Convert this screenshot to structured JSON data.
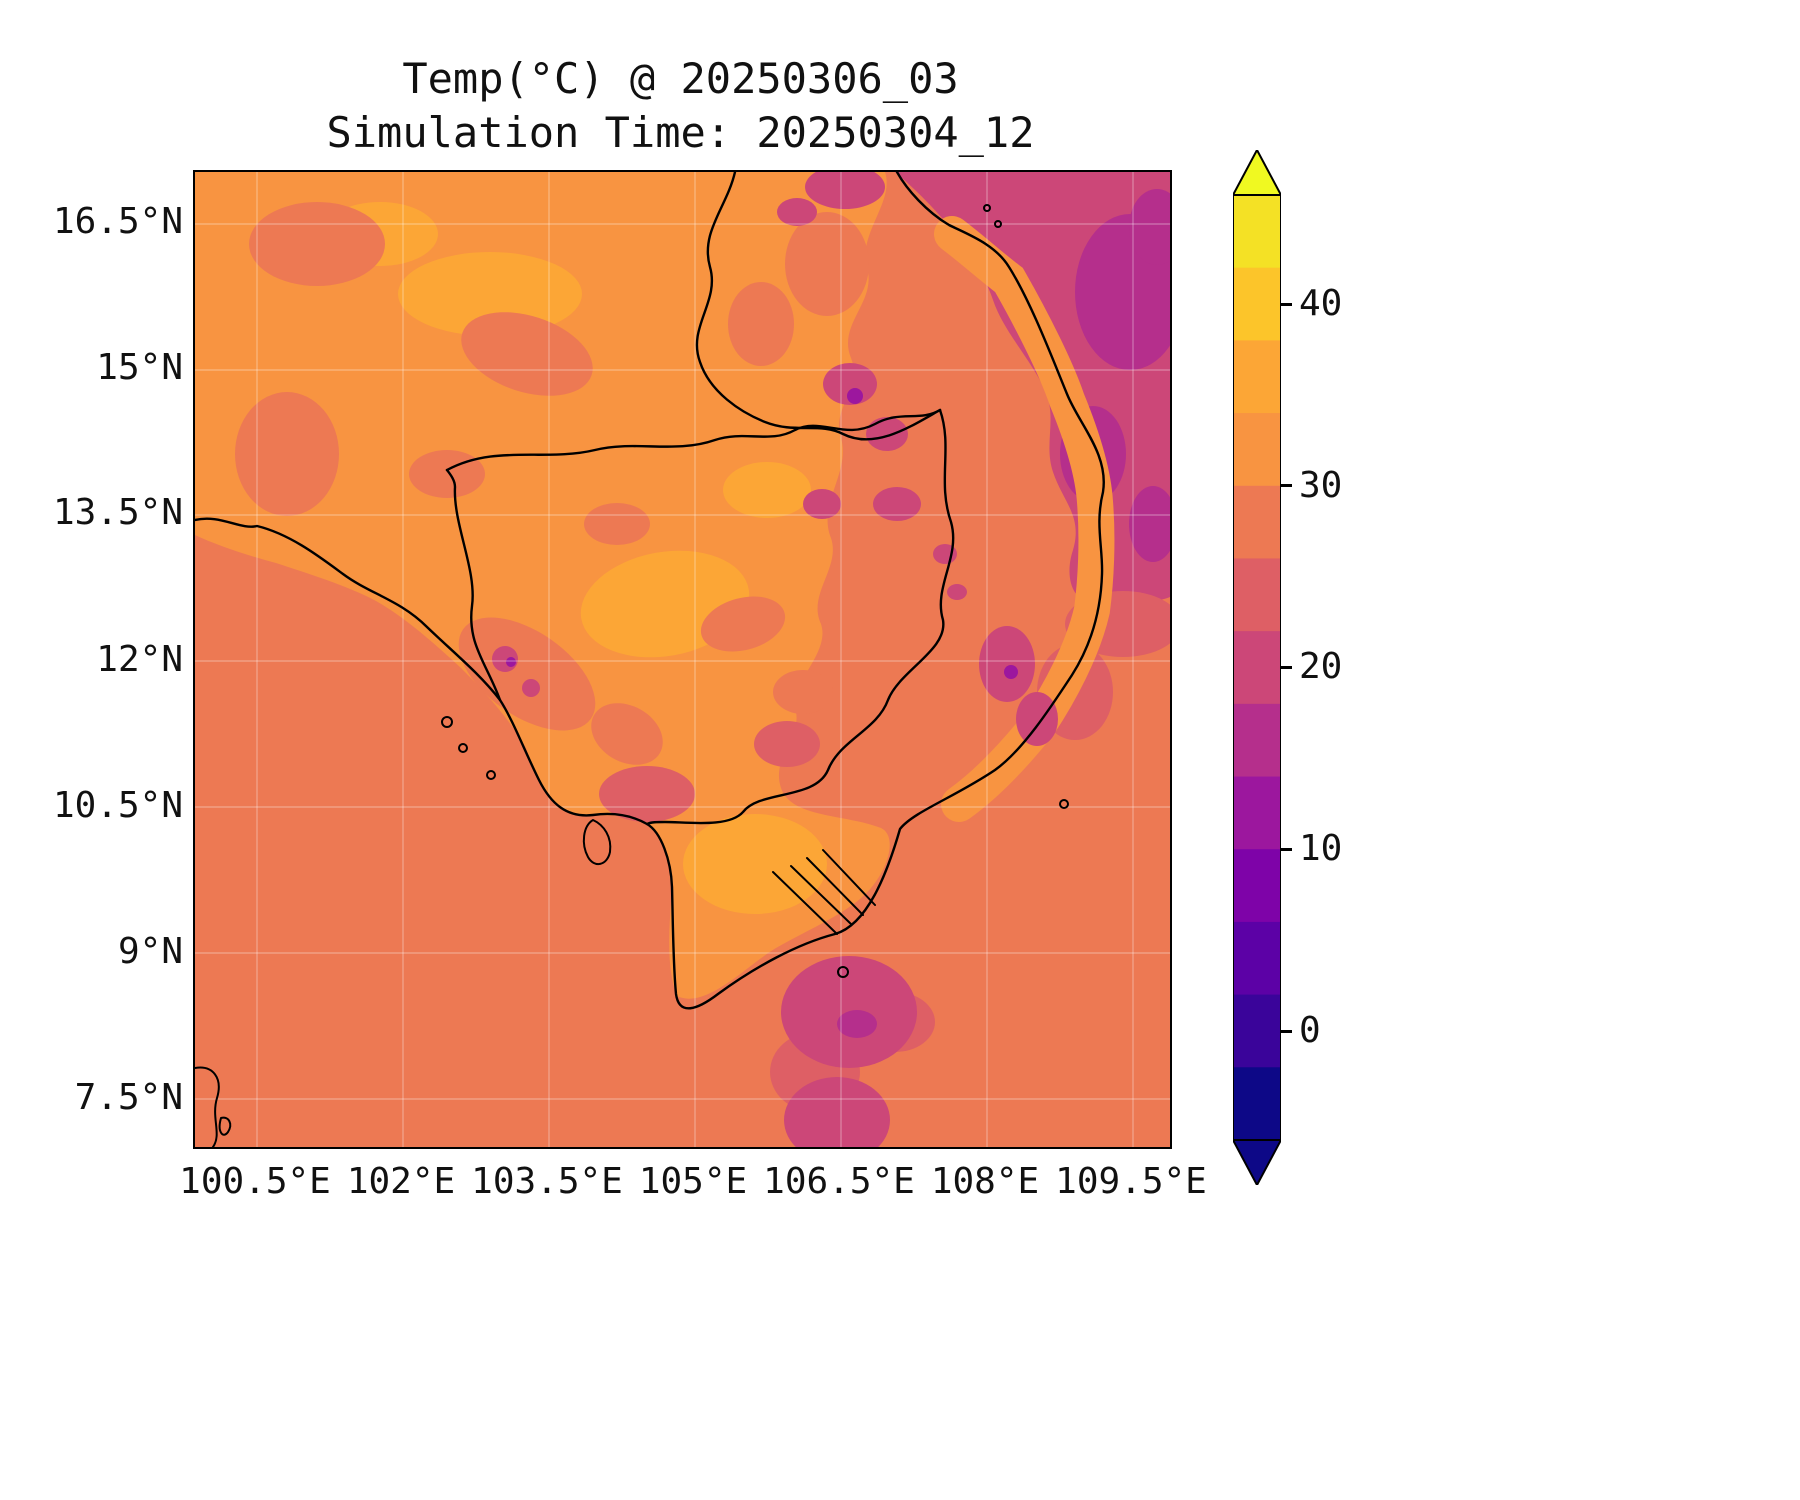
{
  "figure": {
    "title_line1": "Temp(°C) @ 20250306_03",
    "title_line2": "Simulation Time: 20250304_12"
  },
  "chart_data": {
    "type": "heatmap",
    "title": "Temp(°C) @ 20250306_03",
    "subtitle": "Simulation Time: 20250304_12",
    "variable": "Temp",
    "units": "°C",
    "valid_time": "20250306_03",
    "simulation_time": "20250304_12",
    "x_axis": {
      "tick_labels": [
        "100.5°E",
        "102°E",
        "103.5°E",
        "105°E",
        "106.5°E",
        "108°E",
        "109.5°E"
      ],
      "tick_values": [
        100.5,
        102,
        103.5,
        105,
        106.5,
        108,
        109.5
      ],
      "range": [
        99.85,
        109.9
      ]
    },
    "y_axis": {
      "tick_labels": [
        "16.5°N",
        "15°N",
        "13.5°N",
        "12°N",
        "10.5°N",
        "9°N",
        "7.5°N"
      ],
      "tick_values": [
        16.5,
        15,
        13.5,
        12,
        10.5,
        9,
        7.5
      ],
      "range": [
        7.0,
        17.05
      ]
    },
    "colorbar": {
      "tick_labels": [
        "40",
        "30",
        "20",
        "10",
        "0"
      ],
      "tick_values": [
        40,
        30,
        20,
        10,
        0
      ],
      "vmin": -6,
      "vmax": 46,
      "band_step": 4,
      "extend": "both",
      "colors_low_to_high": [
        "#0d0887",
        "#3a049a",
        "#5c01a6",
        "#7e03a8",
        "#9c179e",
        "#b52f8c",
        "#cc4778",
        "#de5f65",
        "#ed7953",
        "#f89441",
        "#fdа936",
        "#fcc52a",
        "#f4e125"
      ],
      "under_color": "#0d0887",
      "over_color": "#f0f921"
    },
    "map_colors": {
      "sea_band": "#ed7953",
      "land_warm": "#f89441",
      "land_hot": "#fca636",
      "cool_patch": "#cc4778",
      "cooler_patch": "#b52f8c",
      "coolest_spot": "#9c179e",
      "pink_band": "#de5f65",
      "outline": "#000000",
      "grid": "rgba(255,255,255,0.35)"
    }
  }
}
